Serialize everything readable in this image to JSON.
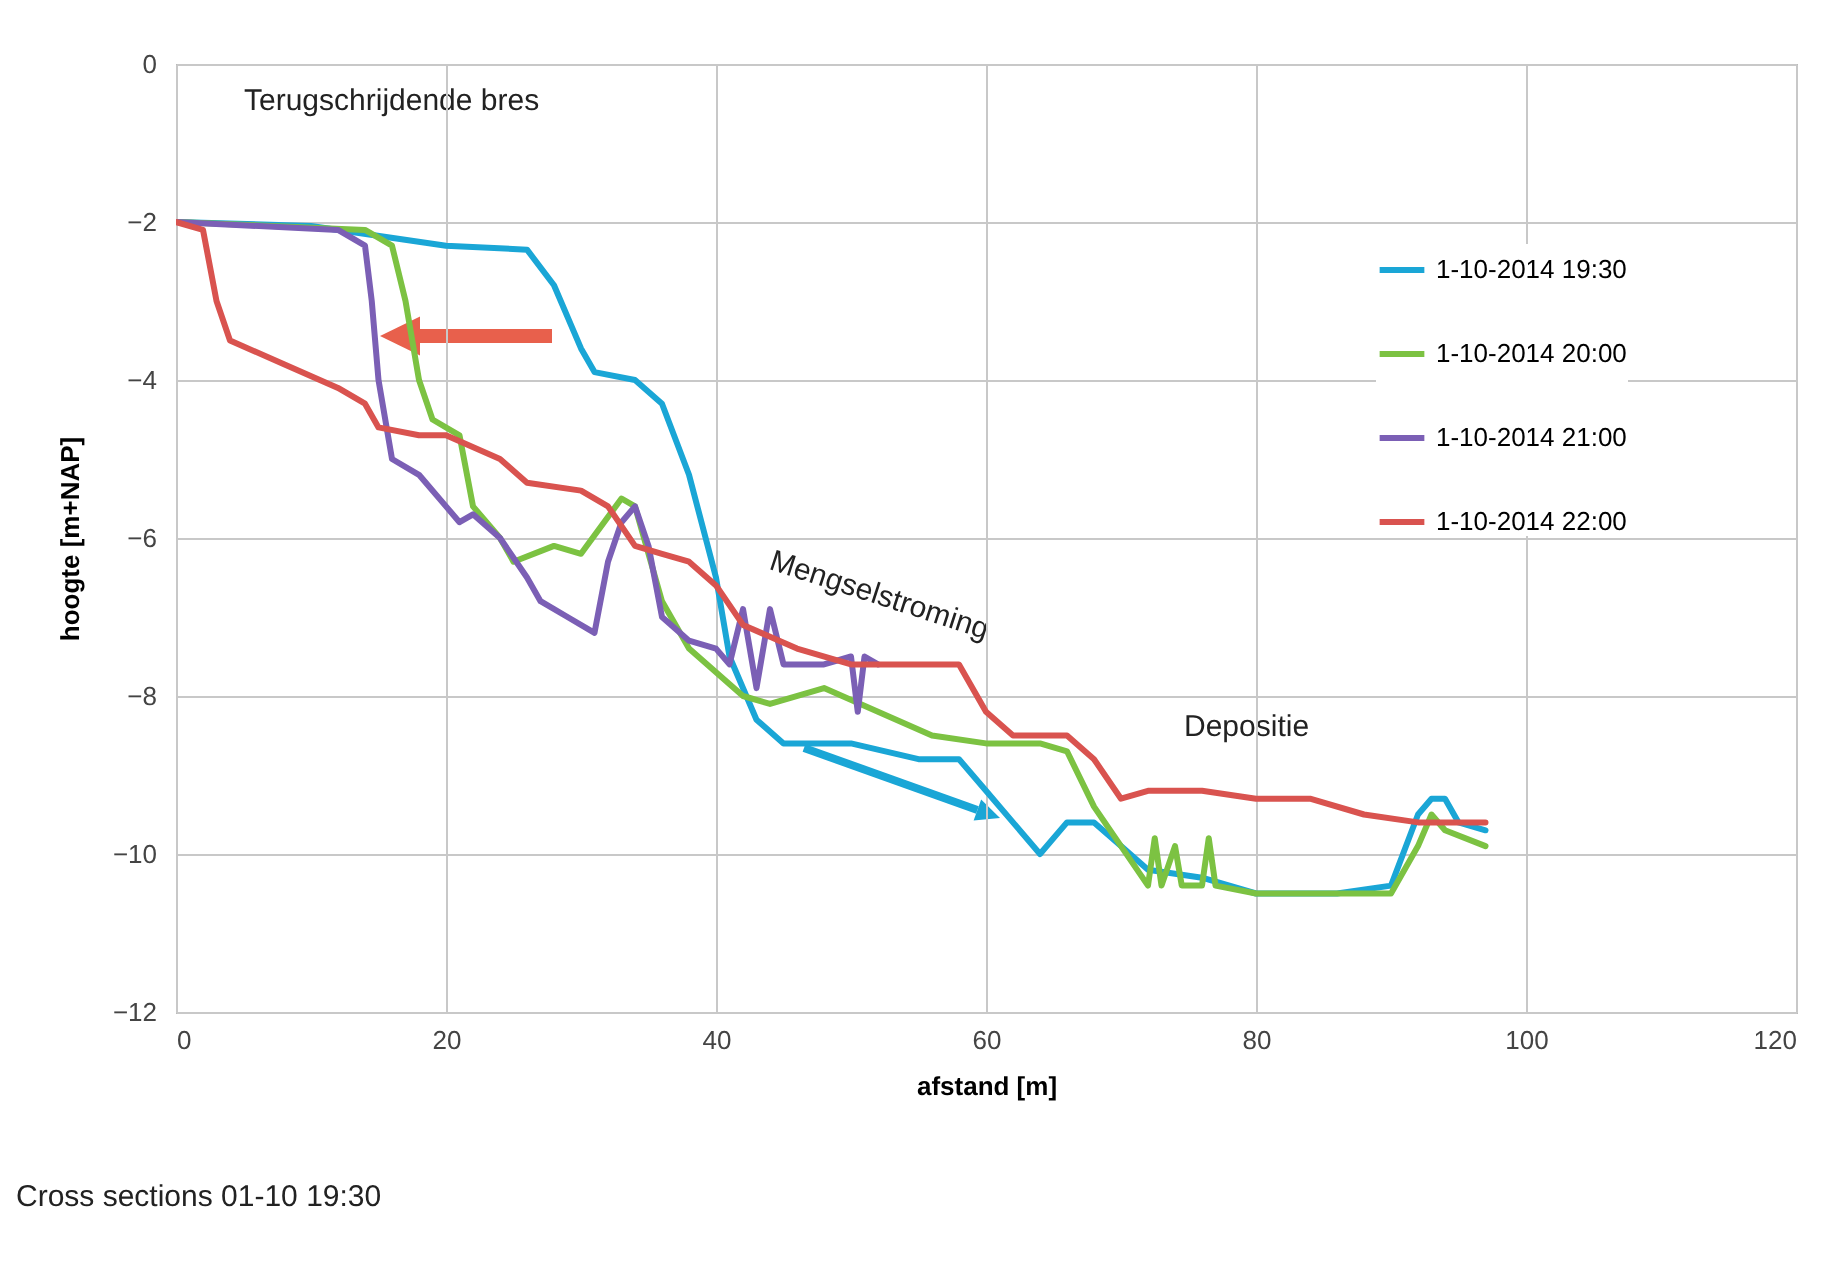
{
  "chart_data": {
    "type": "line",
    "xlabel": "afstand [m]",
    "ylabel": "hoogte [m+NAP]",
    "xlim": [
      0,
      120
    ],
    "xticks": [
      0,
      20,
      40,
      60,
      80,
      100,
      120
    ],
    "ylim": [
      -12,
      0
    ],
    "yticks": [
      -12,
      -10,
      -8,
      -6,
      -4,
      -2,
      0
    ],
    "grid": true,
    "legend": "top right",
    "marker": "none",
    "line_style": "solid",
    "annotations": [
      "Terugschrijdende bres",
      "Mengselstroming",
      "Depositie",
      "Cross sections 01-10 19:30"
    ],
    "series": [
      {
        "name": "1-10-2014 19:30",
        "color": "#1aa6d6",
        "x": [
          0,
          10,
          20,
          26,
          28,
          30,
          31,
          34,
          36,
          38,
          40,
          41,
          43,
          45,
          50,
          55,
          58,
          60,
          62,
          64,
          66,
          68,
          70,
          72,
          76,
          80,
          86,
          90,
          92,
          93,
          94,
          95,
          97
        ],
        "values": [
          -2,
          -2.05,
          -2.3,
          -2.35,
          -2.8,
          -3.6,
          -3.9,
          -4.0,
          -4.3,
          -5.2,
          -6.5,
          -7.5,
          -8.3,
          -8.6,
          -8.6,
          -8.8,
          -8.8,
          -9.2,
          -9.6,
          -10.0,
          -9.6,
          -9.6,
          -9.9,
          -10.2,
          -10.3,
          -10.5,
          -10.5,
          -10.4,
          -9.5,
          -9.3,
          -9.3,
          -9.6,
          -9.7
        ]
      },
      {
        "name": "1-10-2014 20:00",
        "color": "#7cc242",
        "x": [
          0,
          14,
          16,
          17,
          18,
          19,
          21,
          22,
          24,
          25,
          28,
          30,
          33,
          34,
          36,
          38,
          40,
          42,
          44,
          48,
          52,
          56,
          60,
          64,
          66,
          68,
          70,
          72,
          72.5,
          73,
          74,
          74.5,
          76,
          76.5,
          77,
          80,
          90,
          92,
          93,
          94,
          97
        ],
        "values": [
          -2,
          -2.1,
          -2.3,
          -3,
          -4.0,
          -4.5,
          -4.7,
          -5.6,
          -6.0,
          -6.3,
          -6.1,
          -6.2,
          -5.5,
          -5.6,
          -6.8,
          -7.4,
          -7.7,
          -8.0,
          -8.1,
          -7.9,
          -8.2,
          -8.5,
          -8.6,
          -8.6,
          -8.7,
          -9.4,
          -9.9,
          -10.4,
          -9.8,
          -10.4,
          -9.9,
          -10.4,
          -10.4,
          -9.8,
          -10.4,
          -10.5,
          -10.5,
          -9.9,
          -9.5,
          -9.7,
          -9.9
        ]
      },
      {
        "name": "1-10-2014 21:00",
        "color": "#7b5fb5",
        "x": [
          0,
          12,
          14,
          14.5,
          15,
          15.5,
          16,
          18,
          20,
          21,
          22,
          24,
          26,
          27,
          29,
          31,
          32,
          33,
          34,
          35,
          36,
          38,
          40,
          41,
          42,
          43,
          44,
          45,
          48,
          50,
          50.5,
          51,
          52
        ],
        "values": [
          -2,
          -2.1,
          -2.3,
          -3.0,
          -4.0,
          -4.5,
          -5.0,
          -5.2,
          -5.6,
          -5.8,
          -5.7,
          -6.0,
          -6.5,
          -6.8,
          -7.0,
          -7.2,
          -6.3,
          -5.8,
          -5.6,
          -6.1,
          -7.0,
          -7.3,
          -7.4,
          -7.6,
          -6.9,
          -7.9,
          -6.9,
          -7.6,
          -7.6,
          -7.5,
          -8.2,
          -7.5,
          -7.6
        ]
      },
      {
        "name": "1-10-2014 22:00",
        "color": "#d9534f",
        "x": [
          0,
          2,
          3,
          4,
          8,
          12,
          14,
          15,
          18,
          20,
          24,
          26,
          30,
          32,
          34,
          36,
          38,
          40,
          42,
          46,
          50,
          58,
          60,
          62,
          66,
          68,
          70,
          72,
          76,
          80,
          84,
          88,
          92,
          97
        ],
        "values": [
          -2,
          -2.1,
          -3.0,
          -3.5,
          -3.8,
          -4.1,
          -4.3,
          -4.6,
          -4.7,
          -4.7,
          -5.0,
          -5.3,
          -5.4,
          -5.6,
          -6.1,
          -6.2,
          -6.3,
          -6.6,
          -7.1,
          -7.4,
          -7.6,
          -7.6,
          -8.2,
          -8.5,
          -8.5,
          -8.8,
          -9.3,
          -9.2,
          -9.2,
          -9.3,
          -9.3,
          -9.5,
          -9.6,
          -9.6
        ]
      }
    ]
  }
}
